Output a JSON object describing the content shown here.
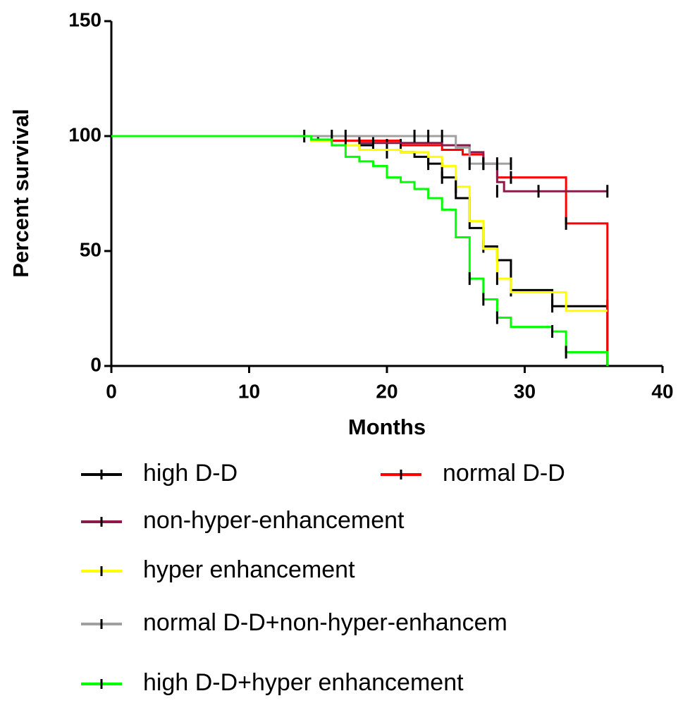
{
  "chart_data": {
    "type": "survival",
    "x_label": "Months",
    "y_label": "Percent survival",
    "xlim": [
      0,
      40
    ],
    "xticks": [
      0,
      10,
      20,
      30,
      40
    ],
    "ylim": [
      0,
      150
    ],
    "yticks": [
      0,
      50,
      100,
      150
    ],
    "series": [
      {
        "name": "high D-D",
        "color": "#000000",
        "x": [
          0,
          15,
          17,
          19,
          21,
          22,
          23,
          24,
          25,
          26,
          27,
          28,
          29,
          32,
          36
        ],
        "values": [
          100,
          98,
          96,
          94,
          93,
          91,
          88,
          82,
          73,
          60,
          52,
          46,
          33,
          26,
          0
        ],
        "censored": [
          [
            20,
            93
          ],
          [
            23,
            88
          ],
          [
            24,
            82
          ],
          [
            27,
            52
          ],
          [
            29,
            33
          ],
          [
            32,
            26
          ],
          [
            36,
            26
          ]
        ]
      },
      {
        "name": "normal D-D",
        "color": "#ff0000",
        "x": [
          0,
          16,
          21,
          24,
          25.5,
          27,
          28,
          33,
          36
        ],
        "values": [
          100,
          98,
          96,
          94,
          92,
          88,
          82,
          62,
          0
        ],
        "censored": [
          [
            20,
            96
          ],
          [
            21,
            96
          ],
          [
            27,
            88
          ],
          [
            29,
            82
          ],
          [
            33,
            62
          ]
        ]
      },
      {
        "name": "non-hyper-enhancement",
        "color": "#8b1a4a",
        "x": [
          0,
          18,
          24,
          26,
          27,
          28,
          28.5,
          36
        ],
        "values": [
          100,
          97,
          96,
          93,
          88,
          80,
          76,
          76
        ],
        "censored": [
          [
            18,
            97
          ],
          [
            19,
            97
          ],
          [
            28,
            76
          ],
          [
            31,
            76
          ],
          [
            36,
            76
          ]
        ]
      },
      {
        "name": "hyper enhancement",
        "color": "#ffff00",
        "x": [
          0,
          14.5,
          16,
          18,
          21,
          23,
          24,
          25,
          26,
          27,
          28,
          29,
          33,
          36
        ],
        "values": [
          100,
          98,
          96,
          94,
          93,
          91,
          87,
          78,
          63,
          51,
          38,
          32,
          24,
          24
        ],
        "censored": [
          [
            25,
            78
          ],
          [
            28,
            38
          ]
        ]
      },
      {
        "name": "normal D-D+non-hyper-enhancem",
        "color": "#a0a0a0",
        "x": [
          0,
          25,
          26,
          29
        ],
        "values": [
          100,
          95,
          88,
          88
        ],
        "censored": [
          [
            14,
            100
          ],
          [
            16,
            100
          ],
          [
            17,
            100
          ],
          [
            22,
            100
          ],
          [
            23,
            100
          ],
          [
            24,
            100
          ],
          [
            26,
            88
          ],
          [
            27,
            88
          ],
          [
            28,
            88
          ],
          [
            29,
            88
          ]
        ]
      },
      {
        "name": "high D-D+hyper enhancement",
        "color": "#00ff00",
        "x": [
          0,
          14.5,
          16,
          17,
          18,
          19,
          20,
          21,
          22,
          23,
          24,
          25,
          26,
          27,
          28,
          29,
          32,
          33,
          36
        ],
        "values": [
          100,
          98.5,
          96,
          91,
          89,
          87,
          82,
          80,
          77,
          73,
          68,
          56,
          38,
          29,
          21,
          17,
          15,
          6,
          0
        ],
        "censored": [
          [
            26,
            38
          ],
          [
            27,
            29
          ],
          [
            28,
            21
          ],
          [
            32,
            15
          ],
          [
            33,
            6
          ]
        ]
      }
    ]
  }
}
